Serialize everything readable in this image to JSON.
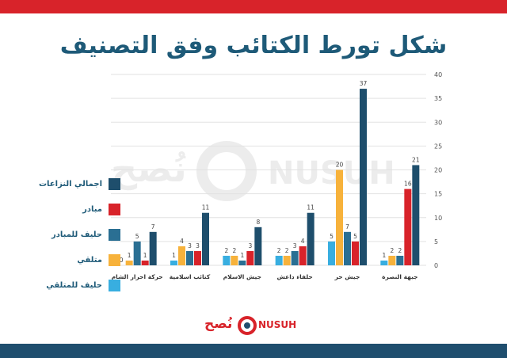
{
  "title": "شكل تورط الكتائب وفق التصنيف",
  "watermark": {
    "arabic": "نُصح",
    "latin": "NUSUH"
  },
  "logo": {
    "arabic": "نُصح",
    "latin": "NUSUH"
  },
  "colors": {
    "total": "#1e4e6c",
    "initiator": "#d8232a",
    "initiator_ally": "#2a6f93",
    "receiver": "#f7b23b",
    "receiver_ally": "#38aee0",
    "top_bar": "#d8232a",
    "bottom_bar": "#1f4e6e",
    "title": "#1e5a78"
  },
  "legend": [
    {
      "key": "total",
      "label": "اجمالي النزاعات"
    },
    {
      "key": "initiator",
      "label": "مبادر"
    },
    {
      "key": "initiator_ally",
      "label": "حليف للمبادر"
    },
    {
      "key": "receiver",
      "label": "متلقي"
    },
    {
      "key": "receiver_ally",
      "label": "حليف للمتلقي"
    }
  ],
  "chart_data": {
    "type": "bar",
    "title": "شكل تورط الكتائب وفق التصنيف",
    "categories": [
      "جبهة النصرة",
      "جيش حر",
      "حلفاء داعش",
      "جيش الاسلام",
      "كتائب اسلامية",
      "حركة احرار الشام"
    ],
    "category_order": "right-to-left",
    "series": [
      {
        "key": "receiver_ally",
        "name": "حليف للمتلقي",
        "values": [
          1,
          5,
          2,
          2,
          1,
          0
        ]
      },
      {
        "key": "receiver",
        "name": "متلقي",
        "values": [
          2,
          20,
          2,
          2,
          4,
          1
        ]
      },
      {
        "key": "initiator_ally",
        "name": "حليف للمبادر",
        "values": [
          2,
          7,
          3,
          1,
          3,
          5
        ]
      },
      {
        "key": "initiator",
        "name": "مبادر",
        "values": [
          16,
          5,
          4,
          3,
          3,
          1
        ]
      },
      {
        "key": "total",
        "name": "اجمالي النزاعات",
        "values": [
          21,
          37,
          11,
          8,
          11,
          7
        ]
      }
    ],
    "ylim": [
      0,
      40
    ],
    "yticks": [
      0,
      5,
      10,
      15,
      20,
      25,
      30,
      35,
      40
    ],
    "ytick_labels": [
      "0",
      "5",
      "10",
      "15",
      "20",
      "25",
      "30",
      "35",
      "40"
    ],
    "y_axis_side": "right",
    "grid": true,
    "legend_position": "left",
    "data_labels": true
  }
}
